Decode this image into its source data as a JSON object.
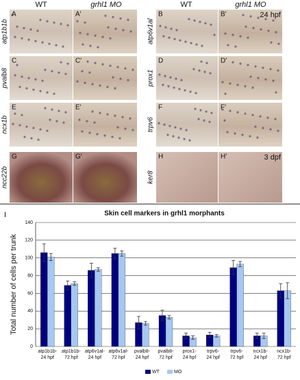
{
  "figure": {
    "headers": [
      "WT",
      "grhl1 MO",
      "WT",
      "grhl1 MO"
    ],
    "rows": [
      {
        "genes": [
          "atp1b1b",
          "atp6v1al"
        ],
        "letters": [
          "A",
          "A′",
          "B",
          "B′"
        ]
      },
      {
        "genes": [
          "pvalb8",
          "prox1"
        ],
        "letters": [
          "C",
          "C′",
          "D",
          "D′"
        ]
      },
      {
        "genes": [
          "ncx1b",
          "trpv6"
        ],
        "letters": [
          "E",
          "E′",
          "F",
          "F′"
        ]
      },
      {
        "genes": [
          "ncc22b",
          "ker8"
        ],
        "letters": [
          "G",
          "G′",
          "H",
          "H′"
        ]
      }
    ],
    "stages": [
      "24 hpf",
      "3 dpf"
    ],
    "chart_letter": "I"
  },
  "chart_data": {
    "type": "bar",
    "title": "Skin cell markers in grhl1 morphants",
    "y_label": "Total number of cells per trunk",
    "categories": [
      [
        "atp1b1b-",
        "24 hpf"
      ],
      [
        "atp1b1b-",
        "72 hpf"
      ],
      [
        "atp6v1al-",
        "24 hpf"
      ],
      [
        "atp6v1al-",
        "72 hpf"
      ],
      [
        "pvalb8-",
        "24 hpf"
      ],
      [
        "pvalb8-",
        "72 hpf"
      ],
      [
        "prox1-",
        "24 hpf"
      ],
      [
        "trpv6-",
        "24 hpf"
      ],
      [
        "trpv6-",
        "72 hpf"
      ],
      [
        "ncx1b-",
        "24 hpf"
      ],
      [
        "ncx1b-",
        "72 hpf"
      ]
    ],
    "series": [
      {
        "name": "WT",
        "color": "#00007f",
        "values": [
          106,
          69,
          86,
          105,
          27,
          35,
          12,
          13,
          89,
          12,
          63
        ],
        "errors": [
          10,
          5,
          8,
          6,
          7,
          6,
          3,
          3,
          8,
          3,
          8
        ]
      },
      {
        "name": "MO",
        "color": "#a6c8f0",
        "values": [
          101,
          71,
          87,
          105,
          26,
          33,
          10,
          12,
          93,
          12,
          63
        ],
        "errors": [
          4,
          2,
          2,
          3,
          2,
          2,
          2,
          1.5,
          3,
          3,
          9
        ]
      }
    ],
    "ylim": [
      0,
      140
    ],
    "yticks": [
      0,
      20,
      40,
      60,
      80,
      100,
      120,
      140
    ],
    "grid": true,
    "legend": "bottom"
  }
}
